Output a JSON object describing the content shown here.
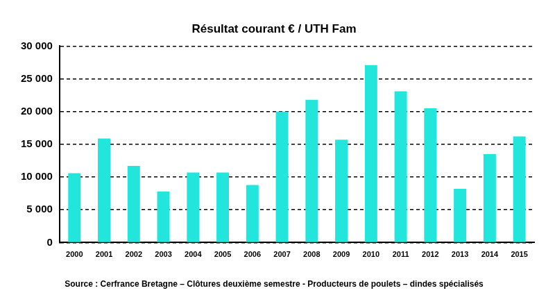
{
  "chart_data": {
    "type": "bar",
    "title": "Résultat courant € / UTH Fam",
    "source": "Source : Cerfrance Bretagne – Clôtures deuxième semestre - Producteurs de poulets – dindes spécialisés",
    "categories": [
      "2000",
      "2001",
      "2002",
      "2003",
      "2004",
      "2005",
      "2006",
      "2007",
      "2008",
      "2009",
      "2010",
      "2011",
      "2012",
      "2013",
      "2014",
      "2015"
    ],
    "values": [
      10600,
      15900,
      11700,
      7800,
      10700,
      10700,
      8800,
      20000,
      21800,
      15700,
      27100,
      23100,
      20500,
      8200,
      13500,
      16200
    ],
    "color": "#22e5dc",
    "ylim": [
      0,
      30000
    ],
    "yticks": [
      0,
      {
        "value": 5000,
        "label": "5 000"
      },
      {
        "value": 10000,
        "label": "10 000"
      },
      {
        "value": 15000,
        "label": "15 000"
      },
      {
        "value": 20000,
        "label": "20 000"
      },
      {
        "value": 25000,
        "label": "25 000"
      },
      {
        "value": 30000,
        "label": "30 000"
      }
    ],
    "grid": true
  }
}
